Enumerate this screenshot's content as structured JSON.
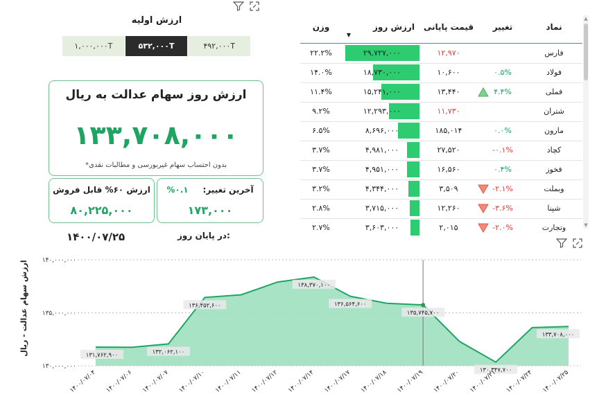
{
  "initial_value": {
    "title": "ارزش اولیه",
    "options": [
      "۱,۰۰۰,۰۰۰T",
      "۵۳۲,۰۰۰T",
      "۴۹۲,۰۰۰T"
    ],
    "selected": "۵۳۲,۰۰۰T"
  },
  "main_card": {
    "title": "ارزش روز سهام عدالت به ریال",
    "value": "۱۳۳,۷۰۸,۰۰۰",
    "note": "*بدون احتساب سهام غیربورسی و مطالبات نقدی"
  },
  "sellable_card": {
    "title": "ارزش ۶۰% قابل فروش",
    "value": "۸۰,۲۲۵,۰۰۰"
  },
  "change_card": {
    "title": "آخرین تغییر:",
    "percent": "۰.۱%",
    "value": "۱۷۳,۰۰۰"
  },
  "end_of_day": {
    "label": "در پایان روز:",
    "date": "۱۴۰۰/۰۷/۲۵"
  },
  "colors": {
    "accent": "#1fa463",
    "bar": "#2ecc71",
    "area": "#9ee0bf",
    "negative": "#e23b3b",
    "line": "#1fa463"
  },
  "table": {
    "headers": {
      "symbol": "نماد",
      "change": "تغییر",
      "final_price": "قیمت پایانی",
      "day_value": "ارزش روز",
      "weight": "وزن"
    },
    "sort_indicator": "▼",
    "rows": [
      {
        "symbol": "فارس",
        "change": "",
        "trend": "",
        "final_price": "۱۲,۹۷۰",
        "final_price_color": "neg",
        "day_value": "۲۹,۷۲۷,۰۰۰",
        "bar": 1.0,
        "weight": "۲۲.۲%"
      },
      {
        "symbol": "فولاد",
        "change": "۰.۵%",
        "change_color": "pos",
        "trend": "",
        "final_price": "۱۰,۶۰۰",
        "final_price_color": "",
        "day_value": "۱۸,۷۳۰,۰۰۰",
        "bar": 0.63,
        "weight": "۱۴.۰%"
      },
      {
        "symbol": "فملی",
        "change": "۴.۴%",
        "change_color": "pos",
        "trend": "up",
        "final_price": "۱۳,۴۴۰",
        "final_price_color": "",
        "day_value": "۱۵,۲۴۱,۰۰۰",
        "bar": 0.51,
        "weight": "۱۱.۴%"
      },
      {
        "symbol": "شتران",
        "change": "",
        "trend": "",
        "final_price": "۱۱,۷۳۰",
        "final_price_color": "neg",
        "day_value": "۱۲,۲۹۳,۰۰۰",
        "bar": 0.41,
        "weight": "۹.۲%"
      },
      {
        "symbol": "مارون",
        "change": "۰.۰%",
        "change_color": "pos",
        "trend": "",
        "final_price": "۱۸۵,۰۱۴",
        "final_price_color": "",
        "day_value": "۸,۶۹۶,۰۰۰",
        "bar": 0.29,
        "weight": "۶.۵%"
      },
      {
        "symbol": "کچاد",
        "change": "-۰.۱%",
        "change_color": "neg",
        "trend": "",
        "final_price": "۲۷,۵۲۰",
        "final_price_color": "",
        "day_value": "۴,۹۸۱,۰۰۰",
        "bar": 0.17,
        "weight": "۳.۷%"
      },
      {
        "symbol": "فخوز",
        "change": "۰.۴%",
        "change_color": "pos",
        "trend": "",
        "final_price": "۱۶,۵۶۰",
        "final_price_color": "",
        "day_value": "۴,۹۵۱,۰۰۰",
        "bar": 0.17,
        "weight": "۳.۷%"
      },
      {
        "symbol": "وبملت",
        "change": "-۲.۱%",
        "change_color": "neg",
        "trend": "down",
        "final_price": "۳,۵۰۹",
        "final_price_color": "",
        "day_value": "۴,۳۴۴,۰۰۰",
        "bar": 0.15,
        "weight": "۳.۲%"
      },
      {
        "symbol": "شپنا",
        "change": "-۳.۶%",
        "change_color": "neg",
        "trend": "down",
        "final_price": "۱۲,۲۶۰",
        "final_price_color": "",
        "day_value": "۳,۷۱۵,۰۰۰",
        "bar": 0.13,
        "weight": "۲.۸%"
      },
      {
        "symbol": "وتجارت",
        "change": "-۲.۰%",
        "change_color": "neg",
        "trend": "down",
        "final_price": "۲,۰۱۵",
        "final_price_color": "",
        "day_value": "۳,۶۰۳,۰۰۰",
        "bar": 0.12,
        "weight": "۲.۷%"
      }
    ]
  },
  "chart_data": {
    "type": "area",
    "ylabel": "ارزش سهام عدالت - ریال",
    "ylim": [
      130000000,
      140000000
    ],
    "yticks": [
      130000000,
      135000000,
      140000000
    ],
    "ytick_labels": [
      "۱۳۰,۰۰۰,۰۰۰",
      "۱۳۵,۰۰۰,۰۰۰",
      "۱۴۰,۰۰۰,۰۰۰"
    ],
    "x_labels": [
      "۱۴۰۰/۰۷/۰۴",
      "۱۴۰۰/۰۷/۰۶",
      "۱۴۰۰/۰۷/۰۷",
      "۱۴۰۰/۰۷/۱۰",
      "۱۴۰۰/۰۷/۱۱",
      "۱۴۰۰/۰۷/۱۲",
      "۱۴۰۰/۰۷/۱۴",
      "۱۴۰۰/۰۷/۱۷",
      "۱۴۰۰/۰۷/۱۸",
      "۱۴۰۰/۰۷/۱۹",
      "۱۴۰۰/۰۷/۲۰",
      "۱۴۰۰/۰۷/۲۱",
      "۱۴۰۰/۰۷/۲۴",
      "۱۴۰۰/۰۷/۲۵"
    ],
    "points": [
      {
        "x": 0,
        "y": 131762900
      },
      {
        "x": 1,
        "y": 131750000
      },
      {
        "x": 2,
        "y": 132062100
      },
      {
        "x": 3,
        "y": 136452600
      },
      {
        "x": 4,
        "y": 136700000
      },
      {
        "x": 5,
        "y": 137900000
      },
      {
        "x": 6,
        "y": 138370100
      },
      {
        "x": 7,
        "y": 136564600
      },
      {
        "x": 8,
        "y": 135900000
      },
      {
        "x": 9,
        "y": 135745700
      },
      {
        "x": 10,
        "y": 132300000
      },
      {
        "x": 11,
        "y": 130347700
      },
      {
        "x": 12,
        "y": 133600000
      },
      {
        "x": 13,
        "y": 133708000
      }
    ],
    "data_labels": [
      {
        "i": 0,
        "text": "۱۳۱,۷۶۲,۹۰۰"
      },
      {
        "i": 2,
        "text": "۱۳۲,۰۶۲,۱۰۰"
      },
      {
        "i": 3,
        "text": "۱۳۶,۴۵۲,۶۰۰"
      },
      {
        "i": 6,
        "text": "۱۳۸,۳۷۰,۱۰۰"
      },
      {
        "i": 7,
        "text": "۱۳۶,۵۶۴,۶۰۰"
      },
      {
        "i": 9,
        "text": "۱۳۵,۷۴۵,۷۰۰"
      },
      {
        "i": 11,
        "text": "۱۳۰,۳۴۷,۷۰۰"
      },
      {
        "i": 13,
        "text": "۱۳۳,۷۰۸,۰۰۰"
      }
    ],
    "highlight_index": 9,
    "grid": true
  }
}
